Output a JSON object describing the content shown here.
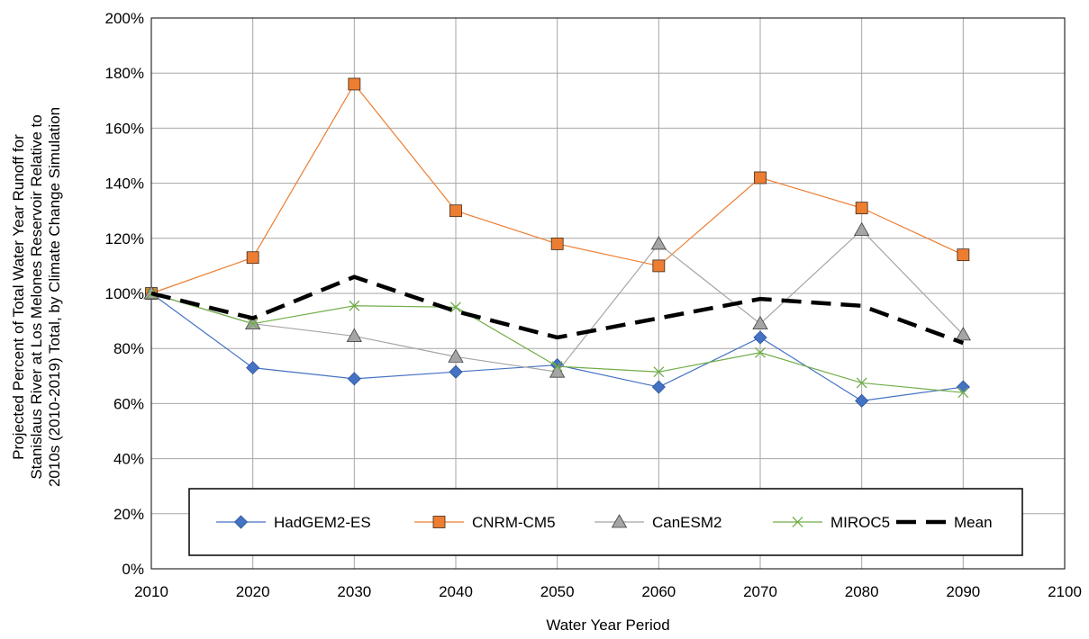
{
  "chart_data": {
    "type": "line",
    "title": "",
    "xlabel": "Water Year Period",
    "ylabel_lines": [
      "Projected Percent of Total Water Year Runoff for",
      "Stanislaus River at Los Melones Reservoir Relative to",
      "2010s (2010-2019) Total, by Climate Change Simulation"
    ],
    "xlim": [
      2010,
      2100
    ],
    "ylim": [
      0,
      200
    ],
    "x_ticks": [
      "2010",
      "2020",
      "2030",
      "2040",
      "2050",
      "2060",
      "2070",
      "2080",
      "2090",
      "2100"
    ],
    "y_ticks": [
      "0%",
      "20%",
      "40%",
      "60%",
      "80%",
      "100%",
      "120%",
      "140%",
      "160%",
      "180%",
      "200%"
    ],
    "grid": "vertical and horizontal",
    "legend_position": "bottom-inside",
    "x": [
      2010,
      2020,
      2030,
      2040,
      2050,
      2060,
      2070,
      2080,
      2090
    ],
    "series": [
      {
        "name": "HadGEM2-ES",
        "values": [
          100,
          73,
          69,
          71.5,
          74,
          66,
          84,
          61,
          66
        ],
        "color": "#4472C4",
        "marker": "diamond"
      },
      {
        "name": "CNRM-CM5",
        "values": [
          100,
          113,
          176,
          130,
          118,
          110,
          142,
          131,
          114
        ],
        "color": "#ED7D31",
        "marker": "square"
      },
      {
        "name": "CanESM2",
        "values": [
          100,
          89,
          84.5,
          77,
          71.5,
          118,
          89,
          123,
          85
        ],
        "color": "#A5A5A5",
        "marker": "triangle"
      },
      {
        "name": "MIROC5",
        "values": [
          100,
          89,
          95.5,
          95,
          73.5,
          71.5,
          78.5,
          67.5,
          64
        ],
        "color": "#70AD47",
        "marker": "x"
      },
      {
        "name": "Mean",
        "values": [
          100,
          91,
          106,
          93.5,
          84,
          91,
          98,
          95.5,
          82
        ],
        "color": "#000000",
        "marker": "none"
      }
    ]
  }
}
